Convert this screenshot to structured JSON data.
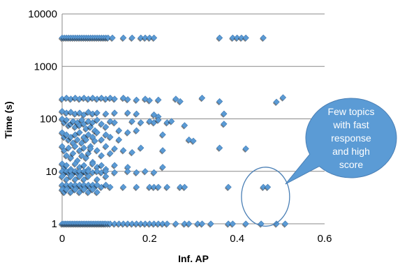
{
  "chart_data": {
    "type": "scatter",
    "xlabel": "Inf. AP",
    "ylabel": "Time (s)",
    "xlim": [
      0,
      0.6
    ],
    "ylim": [
      1,
      10000
    ],
    "yscale": "log",
    "xticks": [
      "0",
      "0.2",
      "0.4",
      "0.6"
    ],
    "yticks": [
      "1",
      "10",
      "100",
      "1000",
      "10000"
    ],
    "grid": "horizontal",
    "marker_color": "#5b9bd5",
    "annotation": {
      "lines": [
        "Few topics",
        "with fast",
        "response",
        "and high",
        "score"
      ],
      "highlight_x_range": [
        0.41,
        0.52
      ],
      "highlight_y_range": [
        0.9,
        12
      ],
      "bubble_color": "#5b9bd5",
      "ring_color": "#4a7fb5"
    },
    "points": [
      [
        0.0,
        1
      ],
      [
        0.004,
        1
      ],
      [
        0.008,
        1
      ],
      [
        0.012,
        1
      ],
      [
        0.016,
        1
      ],
      [
        0.02,
        1
      ],
      [
        0.024,
        1
      ],
      [
        0.028,
        1
      ],
      [
        0.032,
        1
      ],
      [
        0.036,
        1
      ],
      [
        0.04,
        1
      ],
      [
        0.044,
        1
      ],
      [
        0.048,
        1
      ],
      [
        0.052,
        1
      ],
      [
        0.056,
        1
      ],
      [
        0.06,
        1
      ],
      [
        0.064,
        1
      ],
      [
        0.068,
        1
      ],
      [
        0.072,
        1
      ],
      [
        0.076,
        1
      ],
      [
        0.08,
        1
      ],
      [
        0.084,
        1
      ],
      [
        0.088,
        1
      ],
      [
        0.092,
        1
      ],
      [
        0.096,
        1
      ],
      [
        0.1,
        1
      ],
      [
        0.105,
        1
      ],
      [
        0.11,
        1
      ],
      [
        0.12,
        1
      ],
      [
        0.13,
        1
      ],
      [
        0.14,
        1
      ],
      [
        0.15,
        1
      ],
      [
        0.16,
        1
      ],
      [
        0.17,
        1
      ],
      [
        0.18,
        1
      ],
      [
        0.19,
        1
      ],
      [
        0.2,
        1
      ],
      [
        0.21,
        1
      ],
      [
        0.22,
        1
      ],
      [
        0.23,
        1
      ],
      [
        0.24,
        1
      ],
      [
        0.26,
        1
      ],
      [
        0.28,
        1
      ],
      [
        0.29,
        1
      ],
      [
        0.31,
        1
      ],
      [
        0.32,
        1
      ],
      [
        0.34,
        1
      ],
      [
        0.38,
        1
      ],
      [
        0.39,
        1
      ],
      [
        0.42,
        1
      ],
      [
        0.455,
        1
      ],
      [
        0.49,
        1
      ],
      [
        0.51,
        1
      ],
      [
        0.0,
        3500
      ],
      [
        0.005,
        3500
      ],
      [
        0.01,
        3500
      ],
      [
        0.015,
        3500
      ],
      [
        0.02,
        3500
      ],
      [
        0.025,
        3500
      ],
      [
        0.03,
        3500
      ],
      [
        0.035,
        3500
      ],
      [
        0.04,
        3500
      ],
      [
        0.045,
        3500
      ],
      [
        0.05,
        3500
      ],
      [
        0.055,
        3500
      ],
      [
        0.06,
        3500
      ],
      [
        0.065,
        3500
      ],
      [
        0.07,
        3500
      ],
      [
        0.075,
        3500
      ],
      [
        0.08,
        3500
      ],
      [
        0.085,
        3500
      ],
      [
        0.09,
        3500
      ],
      [
        0.095,
        3500
      ],
      [
        0.1,
        3500
      ],
      [
        0.105,
        3500
      ],
      [
        0.115,
        3500
      ],
      [
        0.14,
        3500
      ],
      [
        0.16,
        3500
      ],
      [
        0.18,
        3500
      ],
      [
        0.19,
        3500
      ],
      [
        0.2,
        3500
      ],
      [
        0.21,
        3500
      ],
      [
        0.36,
        3500
      ],
      [
        0.39,
        3500
      ],
      [
        0.4,
        3500
      ],
      [
        0.41,
        3500
      ],
      [
        0.42,
        3500
      ],
      [
        0.46,
        3500
      ],
      [
        0.0,
        240
      ],
      [
        0.01,
        250
      ],
      [
        0.02,
        240
      ],
      [
        0.03,
        250
      ],
      [
        0.04,
        240
      ],
      [
        0.05,
        250
      ],
      [
        0.06,
        240
      ],
      [
        0.07,
        250
      ],
      [
        0.08,
        240
      ],
      [
        0.09,
        250
      ],
      [
        0.1,
        240
      ],
      [
        0.11,
        250
      ],
      [
        0.12,
        240
      ],
      [
        0.14,
        250
      ],
      [
        0.15,
        235
      ],
      [
        0.17,
        230
      ],
      [
        0.19,
        240
      ],
      [
        0.2,
        225
      ],
      [
        0.22,
        230
      ],
      [
        0.26,
        240
      ],
      [
        0.27,
        215
      ],
      [
        0.32,
        250
      ],
      [
        0.36,
        215
      ],
      [
        0.49,
        210
      ],
      [
        0.505,
        255
      ],
      [
        0.0,
        140
      ],
      [
        0.01,
        130
      ],
      [
        0.02,
        135
      ],
      [
        0.03,
        125
      ],
      [
        0.04,
        130
      ],
      [
        0.05,
        120
      ],
      [
        0.06,
        135
      ],
      [
        0.07,
        125
      ],
      [
        0.08,
        130
      ],
      [
        0.1,
        125
      ],
      [
        0.12,
        130
      ],
      [
        0.15,
        130
      ],
      [
        0.17,
        125
      ],
      [
        0.21,
        120
      ],
      [
        0.22,
        110
      ],
      [
        0.37,
        125
      ],
      [
        0.0,
        100
      ],
      [
        0.005,
        85
      ],
      [
        0.01,
        95
      ],
      [
        0.015,
        75
      ],
      [
        0.02,
        80
      ],
      [
        0.025,
        90
      ],
      [
        0.03,
        70
      ],
      [
        0.035,
        85
      ],
      [
        0.04,
        75
      ],
      [
        0.045,
        95
      ],
      [
        0.05,
        80
      ],
      [
        0.055,
        65
      ],
      [
        0.06,
        90
      ],
      [
        0.065,
        70
      ],
      [
        0.07,
        85
      ],
      [
        0.075,
        60
      ],
      [
        0.08,
        95
      ],
      [
        0.09,
        80
      ],
      [
        0.1,
        70
      ],
      [
        0.11,
        90
      ],
      [
        0.12,
        85
      ],
      [
        0.13,
        60
      ],
      [
        0.16,
        90
      ],
      [
        0.18,
        85
      ],
      [
        0.2,
        90
      ],
      [
        0.21,
        85
      ],
      [
        0.22,
        95
      ],
      [
        0.24,
        85
      ],
      [
        0.25,
        90
      ],
      [
        0.28,
        75
      ],
      [
        0.37,
        80
      ],
      [
        0.0,
        55
      ],
      [
        0.005,
        45
      ],
      [
        0.01,
        50
      ],
      [
        0.015,
        40
      ],
      [
        0.02,
        45
      ],
      [
        0.025,
        35
      ],
      [
        0.03,
        50
      ],
      [
        0.035,
        40
      ],
      [
        0.04,
        55
      ],
      [
        0.045,
        35
      ],
      [
        0.05,
        45
      ],
      [
        0.055,
        40
      ],
      [
        0.06,
        50
      ],
      [
        0.065,
        30
      ],
      [
        0.07,
        45
      ],
      [
        0.075,
        38
      ],
      [
        0.08,
        55
      ],
      [
        0.09,
        40
      ],
      [
        0.1,
        50
      ],
      [
        0.11,
        45
      ],
      [
        0.13,
        40
      ],
      [
        0.15,
        55
      ],
      [
        0.17,
        60
      ],
      [
        0.23,
        50
      ],
      [
        0.29,
        40
      ],
      [
        0.3,
        38
      ],
      [
        0.0,
        30
      ],
      [
        0.005,
        25
      ],
      [
        0.01,
        20
      ],
      [
        0.015,
        28
      ],
      [
        0.02,
        18
      ],
      [
        0.025,
        22
      ],
      [
        0.03,
        30
      ],
      [
        0.035,
        16
      ],
      [
        0.04,
        25
      ],
      [
        0.045,
        20
      ],
      [
        0.05,
        28
      ],
      [
        0.055,
        18
      ],
      [
        0.06,
        22
      ],
      [
        0.065,
        27
      ],
      [
        0.07,
        15
      ],
      [
        0.08,
        25
      ],
      [
        0.09,
        20
      ],
      [
        0.1,
        30
      ],
      [
        0.11,
        22
      ],
      [
        0.12,
        27
      ],
      [
        0.14,
        25
      ],
      [
        0.16,
        23
      ],
      [
        0.18,
        28
      ],
      [
        0.23,
        25
      ],
      [
        0.36,
        28
      ],
      [
        0.42,
        27
      ],
      [
        0.0,
        14
      ],
      [
        0.005,
        12
      ],
      [
        0.01,
        13
      ],
      [
        0.02,
        11
      ],
      [
        0.03,
        14
      ],
      [
        0.04,
        12
      ],
      [
        0.05,
        13
      ],
      [
        0.06,
        11
      ],
      [
        0.07,
        14
      ],
      [
        0.08,
        12
      ],
      [
        0.09,
        13
      ],
      [
        0.1,
        11
      ],
      [
        0.12,
        13
      ],
      [
        0.15,
        12
      ],
      [
        0.23,
        12
      ],
      [
        0.0,
        10
      ],
      [
        0.005,
        9
      ],
      [
        0.01,
        10
      ],
      [
        0.015,
        9.5
      ],
      [
        0.02,
        10
      ],
      [
        0.025,
        9
      ],
      [
        0.03,
        10
      ],
      [
        0.035,
        9.5
      ],
      [
        0.04,
        10
      ],
      [
        0.045,
        9
      ],
      [
        0.05,
        10
      ],
      [
        0.055,
        9.5
      ],
      [
        0.06,
        10
      ],
      [
        0.07,
        9.5
      ],
      [
        0.08,
        10
      ],
      [
        0.09,
        9.5
      ],
      [
        0.1,
        10
      ],
      [
        0.12,
        9.5
      ],
      [
        0.15,
        10
      ],
      [
        0.17,
        9.5
      ],
      [
        0.19,
        10
      ],
      [
        0.21,
        9.5
      ],
      [
        0.0,
        8
      ],
      [
        0.01,
        7
      ],
      [
        0.02,
        8
      ],
      [
        0.03,
        7
      ],
      [
        0.04,
        8
      ],
      [
        0.05,
        7
      ],
      [
        0.06,
        8
      ],
      [
        0.08,
        7
      ],
      [
        0.1,
        8
      ],
      [
        0.0,
        5.5
      ],
      [
        0.005,
        5
      ],
      [
        0.01,
        5.5
      ],
      [
        0.015,
        5
      ],
      [
        0.02,
        5.5
      ],
      [
        0.025,
        5
      ],
      [
        0.03,
        5.5
      ],
      [
        0.035,
        5
      ],
      [
        0.04,
        5.5
      ],
      [
        0.045,
        5
      ],
      [
        0.05,
        5.5
      ],
      [
        0.055,
        5
      ],
      [
        0.06,
        5.5
      ],
      [
        0.065,
        5
      ],
      [
        0.07,
        5.5
      ],
      [
        0.075,
        5
      ],
      [
        0.08,
        5.5
      ],
      [
        0.09,
        5
      ],
      [
        0.1,
        5.5
      ],
      [
        0.11,
        5
      ],
      [
        0.14,
        5
      ],
      [
        0.17,
        5
      ],
      [
        0.2,
        5
      ],
      [
        0.21,
        5
      ],
      [
        0.22,
        5
      ],
      [
        0.24,
        5
      ],
      [
        0.27,
        5
      ],
      [
        0.28,
        5
      ],
      [
        0.38,
        5
      ],
      [
        0.46,
        5
      ],
      [
        0.47,
        5
      ],
      [
        0.0,
        4.5
      ],
      [
        0.005,
        4
      ],
      [
        0.01,
        4.5
      ],
      [
        0.02,
        4
      ],
      [
        0.03,
        4.5
      ],
      [
        0.04,
        4
      ],
      [
        0.05,
        4.5
      ],
      [
        0.06,
        4
      ],
      [
        0.07,
        4.5
      ],
      [
        0.08,
        4
      ]
    ]
  }
}
